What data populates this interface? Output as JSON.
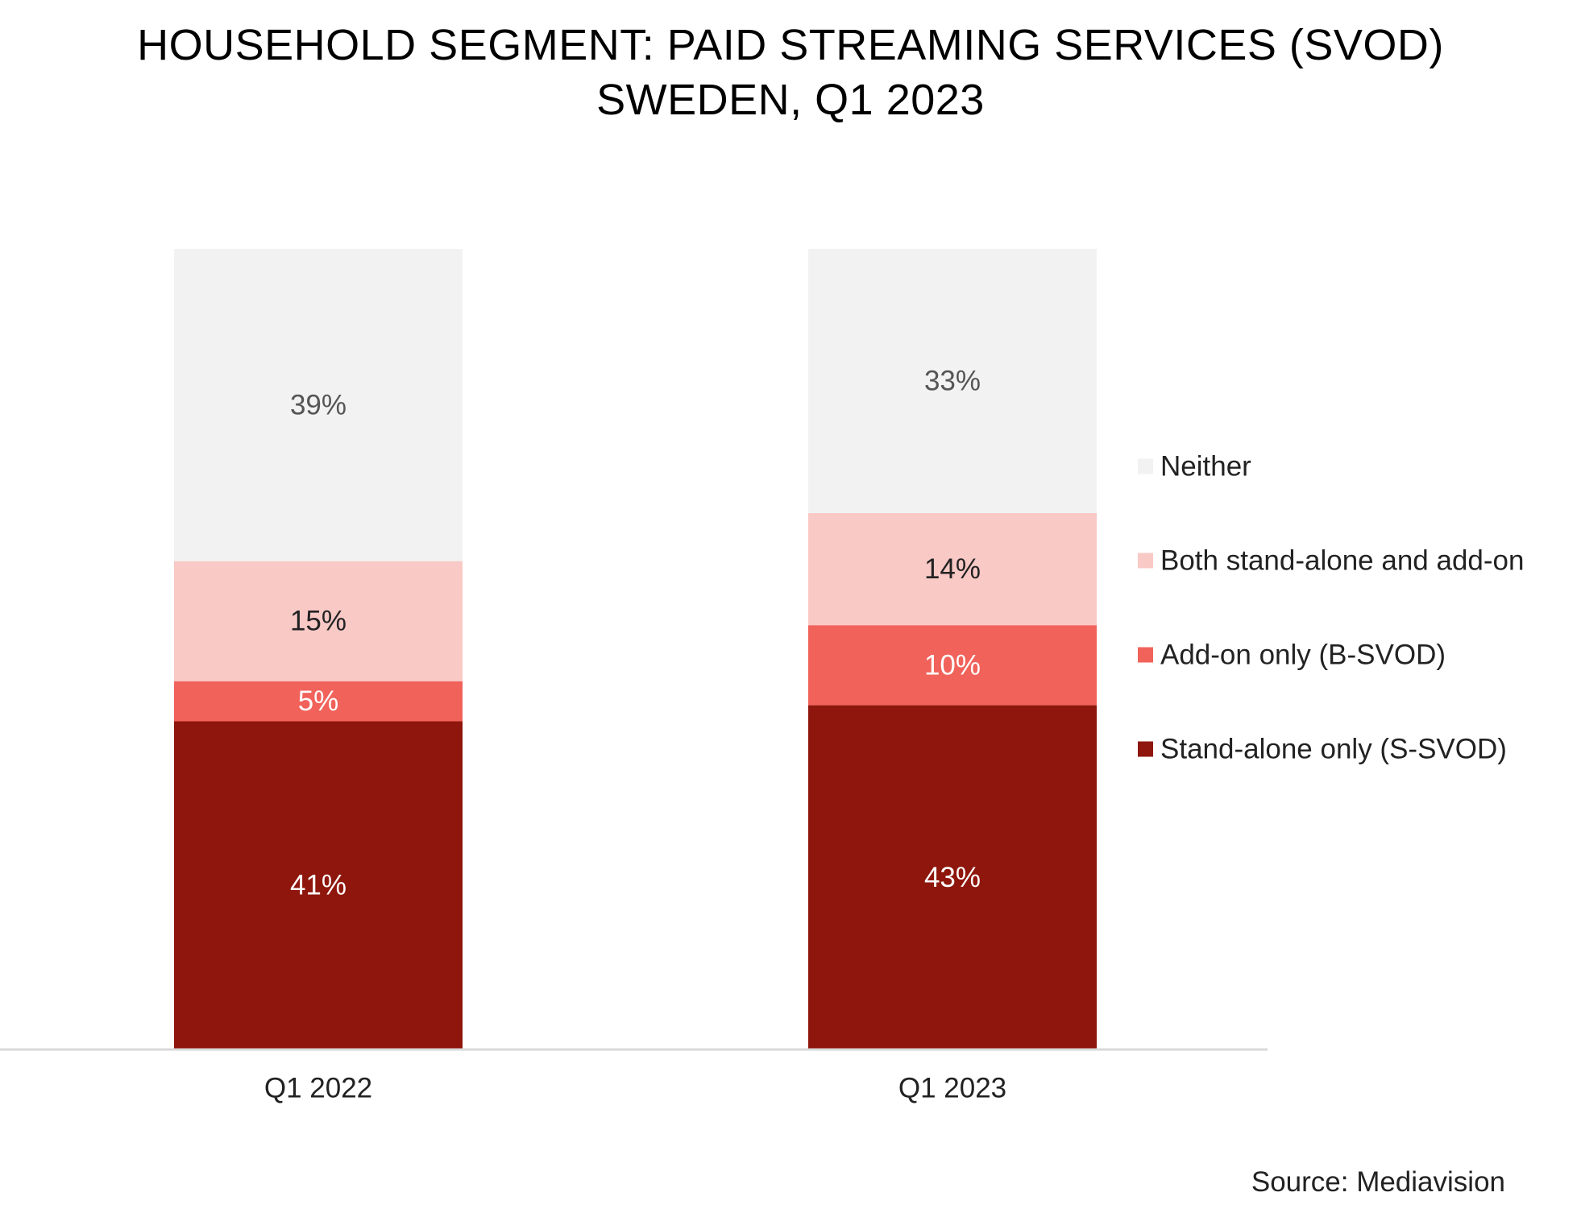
{
  "chart_data": {
    "type": "bar",
    "stacked": true,
    "title": "HOUSEHOLD SEGMENT: PAID STREAMING SERVICES (SVOD)",
    "subtitle": "SWEDEN, Q1 2023",
    "categories": [
      "Q1 2022",
      "Q1 2023"
    ],
    "series": [
      {
        "name": "Stand-alone only (S-SVOD)",
        "values": [
          41,
          43
        ],
        "color": "#8E160C",
        "label_color": "#FFFFFF"
      },
      {
        "name": "Add-on only (B-SVOD)",
        "values": [
          5,
          10
        ],
        "color": "#F1625A",
        "label_color": "#FFFFFF"
      },
      {
        "name": "Both stand-alone and add-on",
        "values": [
          15,
          14
        ],
        "color": "#F9C9C6",
        "label_color": "#222222"
      },
      {
        "name": "Neither",
        "values": [
          39,
          33
        ],
        "color": "#F2F2F2",
        "label_color": "#555555"
      }
    ],
    "value_suffix": "%",
    "ylim": [
      0,
      100
    ],
    "grid": false,
    "legend_position": "right",
    "legend_order": [
      "Neither",
      "Both stand-alone and add-on",
      "Add-on only (B-SVOD)",
      "Stand-alone only (S-SVOD)"
    ],
    "source": "Source: Mediavision"
  }
}
